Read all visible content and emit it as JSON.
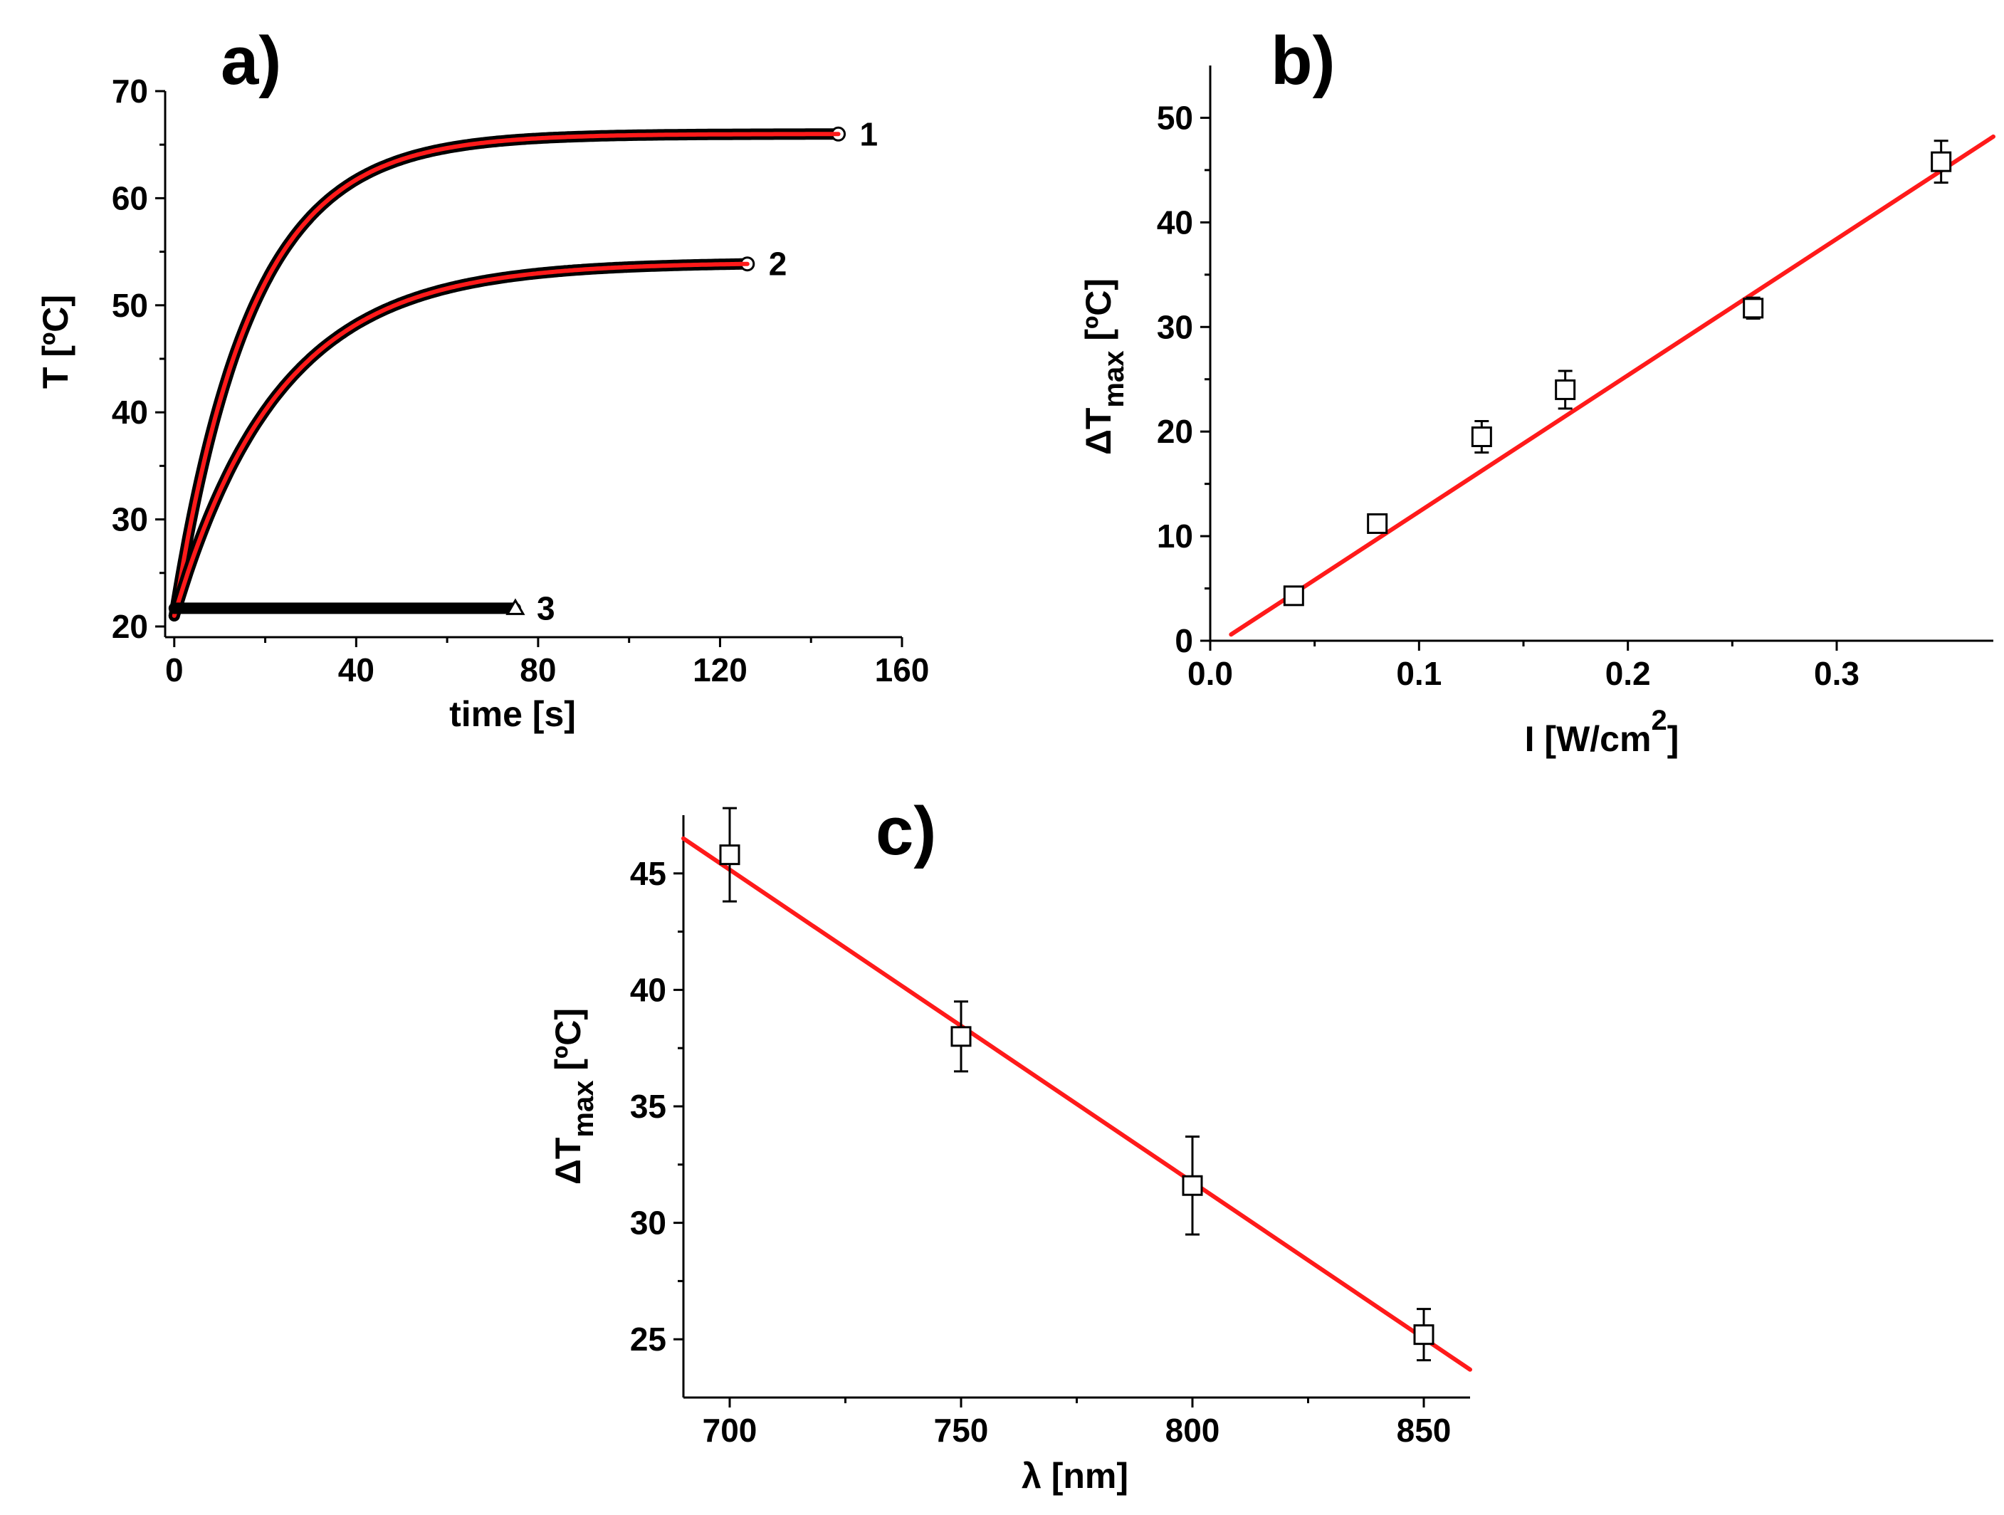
{
  "chart_data": [
    {
      "id": "a",
      "type": "line",
      "panel_label": "a)",
      "xlabel": "time [s]",
      "ylabel": "T [ºC]",
      "xlim": [
        -2,
        160
      ],
      "ylim": [
        19,
        70
      ],
      "xticks": [
        0,
        40,
        80,
        120,
        160
      ],
      "yticks": [
        20,
        30,
        40,
        50,
        60,
        70
      ],
      "series": [
        {
          "name": "1",
          "label": "1",
          "marker": "circle",
          "t_end": 146,
          "T0": 21,
          "Tmax": 66,
          "tau": 17,
          "x": [
            0,
            5,
            10,
            15,
            20,
            25,
            30,
            40,
            50,
            60,
            80,
            100,
            120,
            146
          ],
          "y": [
            21,
            35,
            44,
            50,
            54,
            57,
            59,
            62,
            63.5,
            64.2,
            65,
            65.4,
            65.7,
            66
          ]
        },
        {
          "name": "2",
          "label": "2",
          "marker": "circle",
          "t_end": 126,
          "T0": 21,
          "Tmax": 54,
          "tau": 23,
          "x": [
            0,
            5,
            10,
            15,
            20,
            30,
            40,
            50,
            60,
            80,
            100,
            126
          ],
          "y": [
            21,
            30,
            36,
            40,
            43,
            47,
            49.5,
            51,
            52,
            53,
            53.5,
            53.8
          ]
        },
        {
          "name": "3",
          "label": "3",
          "marker": "triangle",
          "t_end": 75,
          "T0": 21.7,
          "Tmax": 21.7,
          "tau": 1,
          "x": [
            0,
            25,
            50,
            75
          ],
          "y": [
            21.7,
            21.6,
            21.7,
            21.8
          ]
        }
      ],
      "fit": {
        "color": "#ff1a1a",
        "description": "exponential fits to curves 1 and 2"
      }
    },
    {
      "id": "b",
      "type": "scatter",
      "panel_label": "b)",
      "xlabel": "I [W/cm",
      "xlabel_sup": "2",
      "xlabel_end": "]",
      "ylabel": "ΔT",
      "ylabel_sub": "max",
      "ylabel_end": " [ºC]",
      "xlim": [
        0.0,
        0.375
      ],
      "ylim": [
        0,
        55
      ],
      "xticks": [
        "0.0",
        "0.1",
        "0.2",
        "0.3"
      ],
      "yticks": [
        0,
        10,
        20,
        30,
        40,
        50
      ],
      "x": [
        0.04,
        0.08,
        0.13,
        0.17,
        0.26,
        0.35
      ],
      "y": [
        4.3,
        11.2,
        19.5,
        24.0,
        31.8,
        45.8
      ],
      "yerr": [
        0.8,
        0.8,
        1.5,
        1.8,
        1.0,
        2.0
      ],
      "fit": {
        "x": [
          0.01,
          0.375
        ],
        "y": [
          0.6,
          48.2
        ],
        "color": "#ff1a1a"
      }
    },
    {
      "id": "c",
      "type": "scatter",
      "panel_label": "c)",
      "xlabel": "λ [nm]",
      "ylabel": "ΔT",
      "ylabel_sub": "max",
      "ylabel_end": " [ºC]",
      "xlim": [
        690,
        860
      ],
      "ylim": [
        22.5,
        47.5
      ],
      "xticks": [
        700,
        750,
        800,
        850
      ],
      "yticks": [
        25,
        30,
        35,
        40,
        45
      ],
      "x": [
        700,
        750,
        800,
        850
      ],
      "y": [
        45.8,
        38.0,
        31.6,
        25.2
      ],
      "yerr": [
        2.0,
        1.5,
        2.1,
        1.1
      ],
      "fit": {
        "x": [
          690,
          860
        ],
        "y": [
          46.5,
          23.7
        ],
        "color": "#ff1a1a"
      }
    }
  ]
}
